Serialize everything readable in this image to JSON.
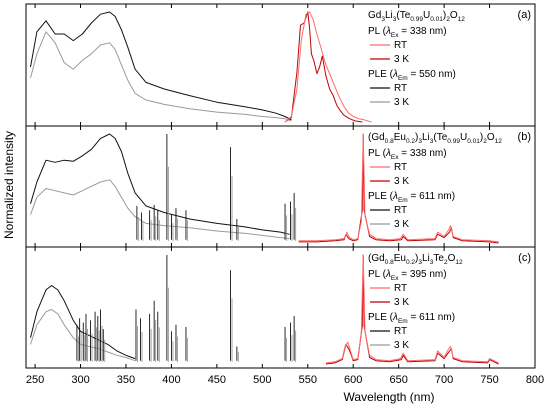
{
  "figure": {
    "ylabel": "Normalized intensity",
    "xlabel": "Wavelength (nm)",
    "xlim": [
      240,
      800
    ],
    "xticks": [
      250,
      300,
      350,
      400,
      450,
      500,
      550,
      600,
      650,
      700,
      750,
      800
    ]
  },
  "legend_items": {
    "pl_rt": "RT",
    "pl_3k": "3 K",
    "ple_rt": "RT",
    "ple_3k": "3 K"
  },
  "colors": {
    "pl_rt": "#ff6b6b",
    "pl_3k": "#c00000",
    "ple_rt": "#111111",
    "ple_3k": "#9a9a9a"
  },
  "chart_data": [
    {
      "panel": "(a)",
      "type": "line",
      "formula": "Gd3Li3(Te0.99U0.01)2O12",
      "pl_legend": "PL (λEx = 338 nm)",
      "ple_legend": "PLE (λEm = 550 nm)",
      "xlim": [
        240,
        800
      ],
      "ylim": [
        0,
        1
      ],
      "series": [
        {
          "name": "PLE RT",
          "x": [
            245,
            252,
            262,
            272,
            282,
            292,
            302,
            312,
            322,
            332,
            338,
            345,
            352,
            360,
            372,
            392,
            420,
            450,
            480,
            500,
            515,
            525,
            532
          ],
          "y": [
            0.5,
            0.82,
            0.92,
            0.8,
            0.8,
            0.74,
            0.8,
            0.9,
            0.98,
            1.0,
            0.96,
            0.84,
            0.68,
            0.48,
            0.36,
            0.3,
            0.24,
            0.18,
            0.14,
            0.11,
            0.08,
            0.05,
            0.02
          ]
        },
        {
          "name": "PLE 3 K",
          "x": [
            245,
            252,
            262,
            272,
            282,
            292,
            302,
            312,
            322,
            332,
            338,
            345,
            352,
            360,
            372,
            392,
            420,
            450,
            480,
            500,
            515,
            525,
            532
          ],
          "y": [
            0.4,
            0.62,
            0.82,
            0.72,
            0.54,
            0.48,
            0.56,
            0.62,
            0.7,
            0.72,
            0.66,
            0.52,
            0.38,
            0.26,
            0.2,
            0.16,
            0.12,
            0.09,
            0.07,
            0.05,
            0.04,
            0.03,
            0.01
          ]
        },
        {
          "name": "PL RT",
          "x": [
            525,
            532,
            538,
            543,
            548,
            552,
            556,
            560,
            565,
            570,
            575,
            580,
            585,
            590,
            595,
            600,
            606,
            612,
            620
          ],
          "y": [
            0.0,
            0.05,
            0.3,
            0.75,
            0.98,
            1.0,
            0.93,
            0.8,
            0.66,
            0.52,
            0.42,
            0.32,
            0.22,
            0.14,
            0.08,
            0.05,
            0.03,
            0.02,
            0.0
          ]
        },
        {
          "name": "PL 3 K",
          "x": [
            525,
            532,
            538,
            542,
            546,
            550,
            552,
            554,
            557,
            560,
            563,
            566,
            570,
            574,
            578,
            582,
            586,
            590,
            596,
            602,
            610
          ],
          "y": [
            0.0,
            0.04,
            0.45,
            0.88,
            0.9,
            1.0,
            0.85,
            0.62,
            0.55,
            0.44,
            0.5,
            0.6,
            0.42,
            0.3,
            0.24,
            0.15,
            0.1,
            0.06,
            0.03,
            0.01,
            0.0
          ]
        }
      ]
    },
    {
      "panel": "(b)",
      "type": "line",
      "formula": "(Gd0.8Eu0.2)3Li3(Te0.99U0.01)2O12",
      "pl_legend": "PL (λEx = 338 nm)",
      "ple_legend": "PLE (λEm = 611 nm)",
      "xlim": [
        240,
        800
      ],
      "ylim": [
        0,
        1
      ],
      "series": [
        {
          "name": "PLE RT",
          "x": [
            245,
            252,
            262,
            272,
            282,
            292,
            302,
            312,
            322,
            332,
            338,
            345,
            352,
            360,
            372,
            392,
            420,
            450,
            480,
            500,
            520,
            530
          ],
          "y": [
            0.36,
            0.56,
            0.76,
            0.74,
            0.76,
            0.75,
            0.8,
            0.86,
            0.96,
            1.0,
            0.96,
            0.84,
            0.64,
            0.46,
            0.34,
            0.28,
            0.22,
            0.18,
            0.15,
            0.12,
            0.1,
            0.08
          ]
        },
        {
          "name": "PLE 3 K",
          "x": [
            245,
            252,
            262,
            272,
            282,
            292,
            302,
            312,
            322,
            332,
            338,
            345,
            352,
            360,
            372,
            392,
            420,
            450,
            480,
            500,
            520,
            530
          ],
          "y": [
            0.26,
            0.42,
            0.5,
            0.48,
            0.46,
            0.44,
            0.48,
            0.52,
            0.56,
            0.58,
            0.52,
            0.42,
            0.32,
            0.24,
            0.18,
            0.16,
            0.14,
            0.11,
            0.09,
            0.07,
            0.05,
            0.04
          ]
        },
        {
          "name": "PL RT",
          "x": [
            540,
            560,
            580,
            590,
            593,
            596,
            600,
            605,
            609,
            611,
            613,
            618,
            625,
            640,
            652,
            655,
            660,
            690,
            693,
            700,
            705,
            707,
            710,
            720,
            750,
            760
          ],
          "y": [
            0.02,
            0.02,
            0.03,
            0.04,
            0.1,
            0.05,
            0.03,
            0.04,
            0.2,
            1.0,
            0.25,
            0.08,
            0.04,
            0.03,
            0.04,
            0.08,
            0.03,
            0.04,
            0.1,
            0.06,
            0.12,
            0.16,
            0.06,
            0.03,
            0.02,
            0.01
          ]
        },
        {
          "name": "PL 3 K",
          "x": [
            540,
            560,
            580,
            590,
            592,
            595,
            600,
            605,
            610,
            611,
            612,
            618,
            625,
            640,
            653,
            655,
            660,
            690,
            693,
            700,
            706,
            708,
            710,
            720,
            750,
            760
          ],
          "y": [
            0.01,
            0.01,
            0.02,
            0.03,
            0.08,
            0.04,
            0.02,
            0.03,
            0.3,
            1.0,
            0.3,
            0.06,
            0.03,
            0.02,
            0.03,
            0.06,
            0.02,
            0.03,
            0.08,
            0.05,
            0.1,
            0.14,
            0.05,
            0.02,
            0.01,
            0.0
          ]
        }
      ],
      "sharp_lines": [
        {
          "x": 362,
          "y": 0.34
        },
        {
          "x": 367,
          "y": 0.28
        },
        {
          "x": 376,
          "y": 0.3
        },
        {
          "x": 381,
          "y": 0.35
        },
        {
          "x": 385,
          "y": 0.3
        },
        {
          "x": 395,
          "y": 1.0
        },
        {
          "x": 400,
          "y": 0.26
        },
        {
          "x": 405,
          "y": 0.32
        },
        {
          "x": 416,
          "y": 0.3
        },
        {
          "x": 465,
          "y": 0.88
        },
        {
          "x": 472,
          "y": 0.22
        },
        {
          "x": 525,
          "y": 0.36
        },
        {
          "x": 531,
          "y": 0.38
        },
        {
          "x": 535,
          "y": 0.46
        }
      ]
    },
    {
      "panel": "(c)",
      "type": "line",
      "formula": "(Gd0.8Eu0.2)3Li3Te2O12",
      "pl_legend": "PL (λEx = 395 nm)",
      "ple_legend": "PLE (λEm = 611 nm)",
      "xlim": [
        240,
        800
      ],
      "ylim": [
        0,
        1
      ],
      "series": [
        {
          "name": "PLE RT",
          "x": [
            245,
            252,
            262,
            268,
            275,
            282,
            292,
            300,
            310,
            320,
            330,
            340,
            350,
            360
          ],
          "y": [
            0.24,
            0.48,
            0.68,
            0.72,
            0.68,
            0.58,
            0.4,
            0.3,
            0.26,
            0.22,
            0.18,
            0.12,
            0.08,
            0.05
          ]
        },
        {
          "name": "PLE 3 K",
          "x": [
            245,
            252,
            262,
            268,
            275,
            282,
            292,
            300,
            310,
            320,
            330,
            340,
            350,
            360
          ],
          "y": [
            0.18,
            0.36,
            0.48,
            0.5,
            0.46,
            0.36,
            0.24,
            0.18,
            0.16,
            0.14,
            0.11,
            0.08,
            0.06,
            0.03
          ]
        },
        {
          "name": "PL RT",
          "x": [
            570,
            580,
            588,
            591,
            594,
            597,
            600,
            605,
            609,
            611,
            613,
            618,
            625,
            640,
            652,
            655,
            660,
            690,
            693,
            700,
            705,
            707,
            710,
            720,
            748,
            750,
            760
          ],
          "y": [
            0.01,
            0.02,
            0.05,
            0.16,
            0.2,
            0.12,
            0.04,
            0.05,
            0.3,
            1.0,
            0.3,
            0.08,
            0.04,
            0.03,
            0.05,
            0.1,
            0.03,
            0.04,
            0.12,
            0.06,
            0.14,
            0.16,
            0.06,
            0.03,
            0.02,
            0.05,
            0.01
          ]
        },
        {
          "name": "PL 3 K",
          "x": [
            570,
            580,
            588,
            592,
            595,
            598,
            600,
            605,
            610,
            611,
            612,
            618,
            625,
            640,
            653,
            655,
            660,
            690,
            693,
            700,
            706,
            708,
            710,
            720,
            748,
            750,
            760
          ],
          "y": [
            0.0,
            0.01,
            0.04,
            0.18,
            0.14,
            0.08,
            0.03,
            0.04,
            0.35,
            1.0,
            0.35,
            0.06,
            0.03,
            0.02,
            0.04,
            0.08,
            0.02,
            0.03,
            0.1,
            0.05,
            0.12,
            0.14,
            0.05,
            0.02,
            0.01,
            0.04,
            0.0
          ]
        }
      ],
      "sharp_lines": [
        {
          "x": 296,
          "y": 0.36
        },
        {
          "x": 299,
          "y": 0.42
        },
        {
          "x": 303,
          "y": 0.38
        },
        {
          "x": 306,
          "y": 0.46
        },
        {
          "x": 311,
          "y": 0.4
        },
        {
          "x": 316,
          "y": 0.48
        },
        {
          "x": 319,
          "y": 0.44
        },
        {
          "x": 322,
          "y": 0.5
        },
        {
          "x": 325,
          "y": 0.32
        },
        {
          "x": 361,
          "y": 0.5
        },
        {
          "x": 366,
          "y": 0.42
        },
        {
          "x": 376,
          "y": 0.46
        },
        {
          "x": 381,
          "y": 0.58
        },
        {
          "x": 385,
          "y": 0.48
        },
        {
          "x": 395,
          "y": 1.0
        },
        {
          "x": 400,
          "y": 0.3
        },
        {
          "x": 405,
          "y": 0.36
        },
        {
          "x": 416,
          "y": 0.34
        },
        {
          "x": 465,
          "y": 0.86
        },
        {
          "x": 472,
          "y": 0.16
        },
        {
          "x": 525,
          "y": 0.34
        },
        {
          "x": 531,
          "y": 0.38
        },
        {
          "x": 535,
          "y": 0.44
        }
      ]
    }
  ]
}
